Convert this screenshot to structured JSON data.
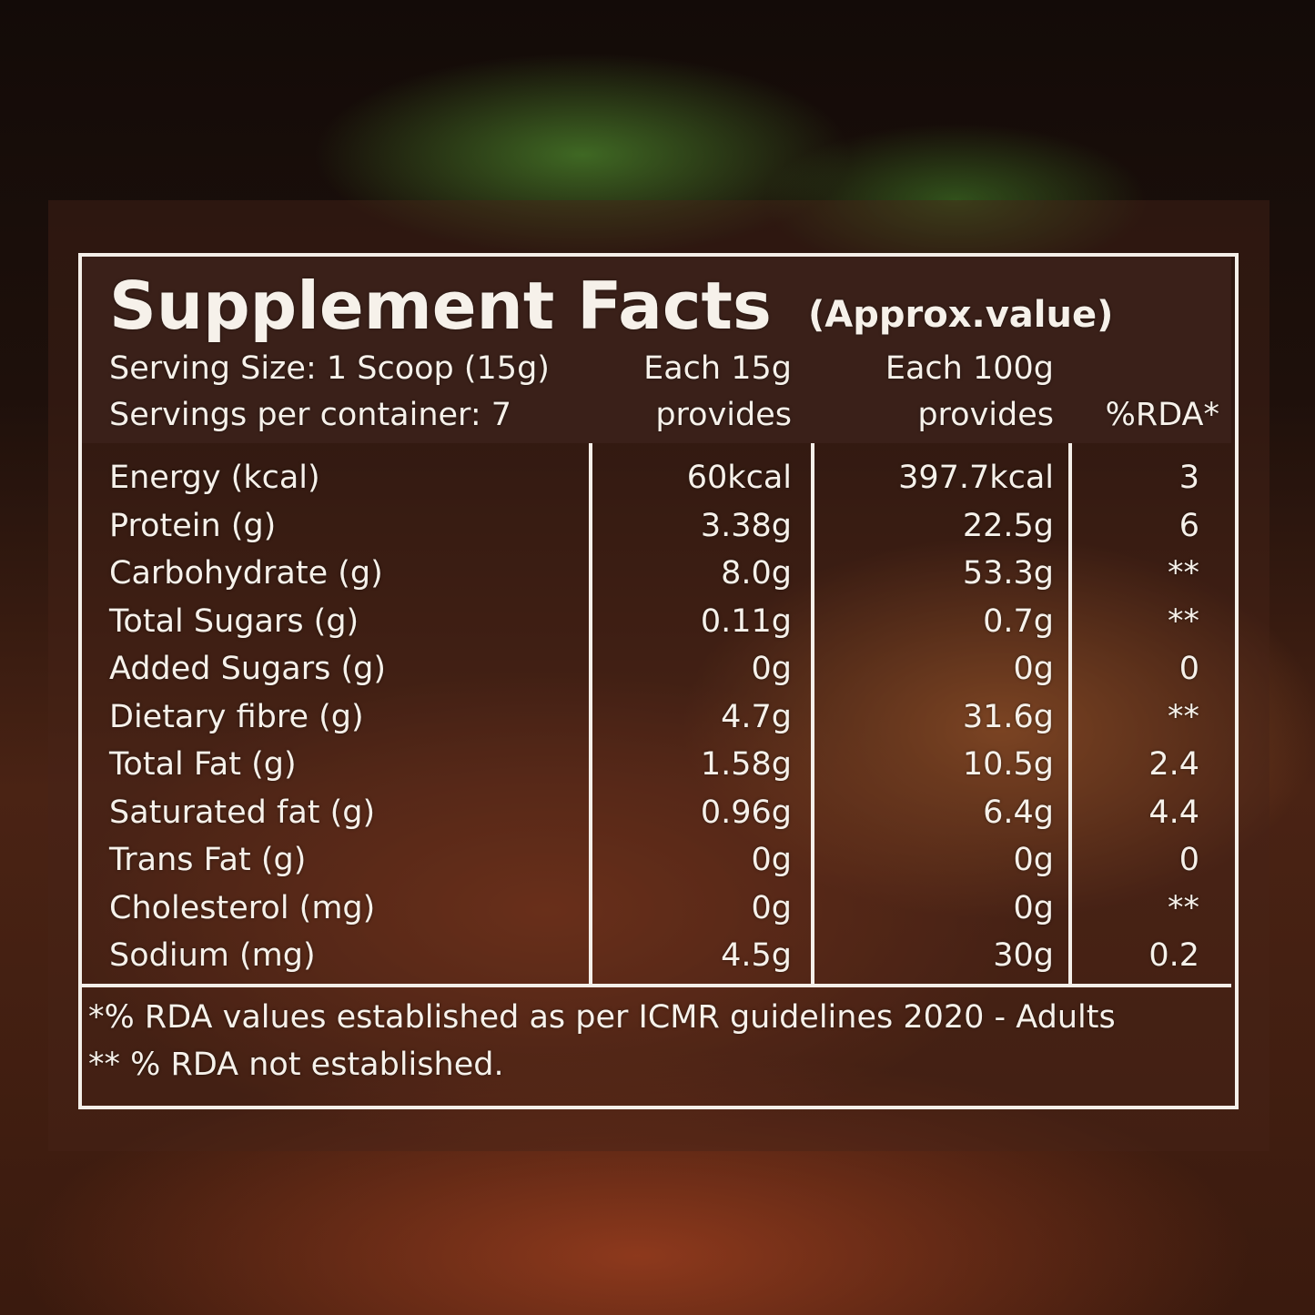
{
  "header": {
    "title": "Supplement Facts",
    "subtitle": "(Approx.value)",
    "serving_size": "Serving Size: 1 Scoop (15g)",
    "servings_per_container": "Servings per container: 7"
  },
  "table": {
    "columns": [
      [
        "Each 15g",
        "provides"
      ],
      [
        "Each 100g",
        "provides"
      ],
      [
        "%RDA*"
      ]
    ],
    "rows": [
      [
        "Energy (kcal)",
        "60kcal",
        "397.7kcal",
        "3"
      ],
      [
        "Protein (g)",
        "3.38g",
        "22.5g",
        "6"
      ],
      [
        "Carbohydrate (g)",
        "8.0g",
        "53.3g",
        "**"
      ],
      [
        "Total Sugars (g)",
        "0.11g",
        "0.7g",
        "**"
      ],
      [
        "Added Sugars (g)",
        "0g",
        "0g",
        "0"
      ],
      [
        "Dietary fibre (g)",
        "4.7g",
        "31.6g",
        "**"
      ],
      [
        "Total Fat (g)",
        "1.58g",
        "10.5g",
        "2.4"
      ],
      [
        "Saturated fat (g)",
        "0.96g",
        "6.4g",
        "4.4"
      ],
      [
        "Trans Fat (g)",
        "0g",
        "0g",
        "0"
      ],
      [
        "Cholesterol (mg)",
        "0g",
        "0g",
        "**"
      ],
      [
        "Sodium (mg)",
        "4.5g",
        "30g",
        "0.2"
      ]
    ]
  },
  "footnotes": [
    "*% RDA values established as per ICMR guidelines 2020 - Adults",
    "** % RDA not established."
  ]
}
